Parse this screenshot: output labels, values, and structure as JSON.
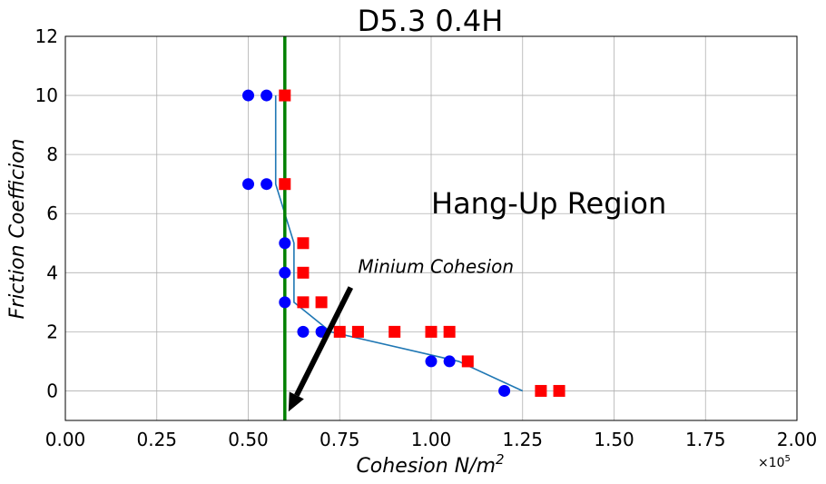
{
  "chart_data": {
    "type": "scatter",
    "title": "D5.3 0.4H",
    "xlabel_main": "Cohesion N/m",
    "xlabel_sup": "2",
    "ylabel": "Friction Coefficion",
    "x_offset_base": "×10",
    "x_offset_exp": "5",
    "xlim": [
      0,
      2.0
    ],
    "ylim": [
      -1,
      12
    ],
    "xticks": [
      0,
      0.25,
      0.5,
      0.75,
      1.0,
      1.25,
      1.5,
      1.75,
      2.0
    ],
    "xtick_labels": [
      "0.00",
      "0.25",
      "0.50",
      "0.75",
      "1.00",
      "1.25",
      "1.50",
      "1.75",
      "2.00"
    ],
    "yticks": [
      0,
      2,
      4,
      6,
      8,
      10,
      12
    ],
    "ytick_labels": [
      "0",
      "2",
      "4",
      "6",
      "8",
      "10",
      "12"
    ],
    "grid": true,
    "series": [
      {
        "marker": "circle",
        "color": "#0000ff",
        "points": [
          [
            0.5,
            10
          ],
          [
            0.55,
            10
          ],
          [
            0.5,
            7
          ],
          [
            0.55,
            7
          ],
          [
            0.6,
            5
          ],
          [
            0.6,
            4
          ],
          [
            0.6,
            3
          ],
          [
            0.65,
            2
          ],
          [
            0.7,
            2
          ],
          [
            1.0,
            1
          ],
          [
            1.05,
            1
          ],
          [
            1.2,
            0
          ]
        ]
      },
      {
        "marker": "square",
        "color": "#ff0000",
        "points": [
          [
            0.6,
            10
          ],
          [
            0.6,
            7
          ],
          [
            0.65,
            5
          ],
          [
            0.65,
            4
          ],
          [
            0.65,
            3
          ],
          [
            0.7,
            3
          ],
          [
            0.75,
            2
          ],
          [
            0.8,
            2
          ],
          [
            0.9,
            2
          ],
          [
            1.0,
            2
          ],
          [
            1.05,
            2
          ],
          [
            1.1,
            1
          ],
          [
            1.3,
            0
          ],
          [
            1.35,
            0
          ]
        ]
      },
      {
        "marker": "line",
        "color": "#1f77b4",
        "points": [
          [
            1.25,
            0
          ],
          [
            1.075,
            1
          ],
          [
            0.725,
            2
          ],
          [
            0.625,
            3
          ],
          [
            0.625,
            4
          ],
          [
            0.625,
            5
          ],
          [
            0.575,
            7
          ],
          [
            0.575,
            10
          ]
        ]
      }
    ],
    "vline": {
      "x": 0.6,
      "color": "#008000"
    },
    "annotations": {
      "region_text": "Hang-Up Region",
      "region_at": [
        1.0,
        6.0
      ],
      "arrow_text": "Minium Cohesion",
      "arrow_text_at": [
        0.8,
        4.0
      ],
      "arrow_from": [
        0.78,
        3.5
      ],
      "arrow_to": [
        0.61,
        -0.7
      ]
    }
  }
}
